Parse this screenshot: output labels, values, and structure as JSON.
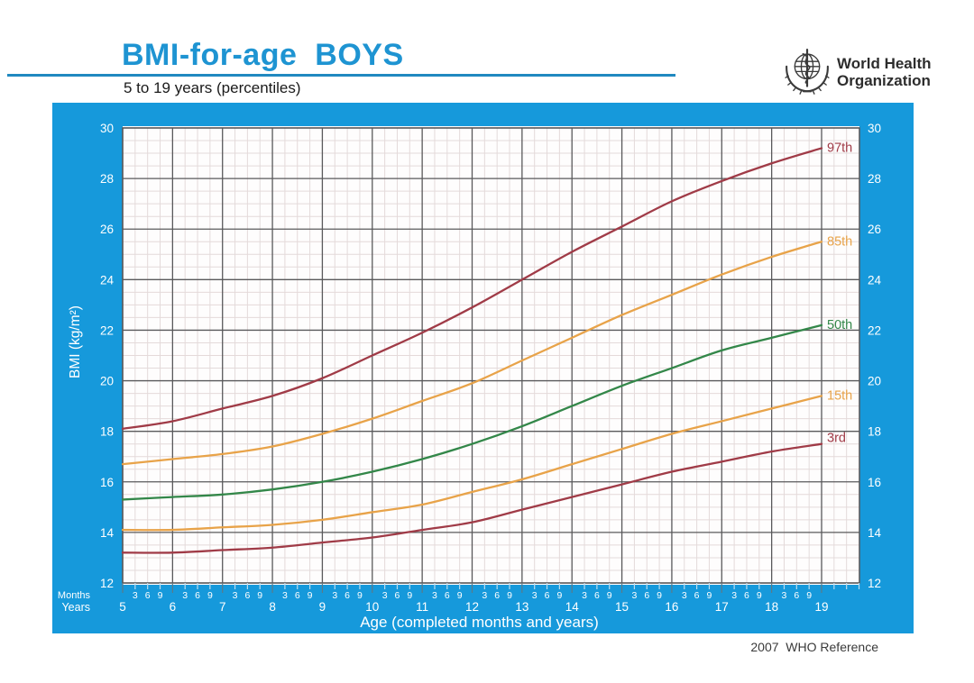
{
  "header": {
    "title": "BMI-for-age  BOYS",
    "subtitle": "5 to 19 years (percentiles)"
  },
  "logo": {
    "line1": "World Health",
    "line2": "Organization"
  },
  "footer": {
    "reference": "2007  WHO Reference"
  },
  "colors": {
    "panel_blue": "#1699db",
    "title_blue": "#1e94d2",
    "underline_blue": "#2089c0",
    "plot_bg": "#fefdfd",
    "grid_major": "#59595b",
    "grid_minor": "#e4dada",
    "axis_text": "#ffffff",
    "red": "#a03b47",
    "orange": "#e8a349",
    "green": "#338749"
  },
  "chart_data": {
    "type": "line",
    "title": "BMI-for-age BOYS, 5 to 19 years (percentiles)",
    "xlabel": "Age (completed months and years)",
    "ylabel": "BMI (kg/m²)",
    "x_axis_row_labels": {
      "months": "Months",
      "years": "Years"
    },
    "month_tick_labels": [
      "3",
      "6",
      "9"
    ],
    "x": [
      5,
      6,
      7,
      8,
      9,
      10,
      11,
      12,
      13,
      14,
      15,
      16,
      17,
      18,
      19
    ],
    "year_tick_labels": [
      "5",
      "6",
      "7",
      "8",
      "9",
      "10",
      "11",
      "12",
      "13",
      "14",
      "15",
      "16",
      "17",
      "18",
      "19"
    ],
    "y_tick_labels": [
      "30",
      "28",
      "26",
      "24",
      "22",
      "20",
      "18",
      "16",
      "14",
      "12"
    ],
    "xlim": [
      5,
      19.75
    ],
    "ylim": [
      12,
      30
    ],
    "y_major_step": 2,
    "y_minor_step": 0.5,
    "x_minor_step": 0.25,
    "grid": true,
    "legend_position": "right-of-curve-ends",
    "series": [
      {
        "name": "97th",
        "color": "#a03b47",
        "values": [
          18.1,
          18.4,
          18.9,
          19.4,
          20.1,
          21.0,
          21.9,
          22.9,
          24.0,
          25.1,
          26.1,
          27.1,
          27.9,
          28.6,
          29.2
        ]
      },
      {
        "name": "85th",
        "color": "#e8a349",
        "values": [
          16.7,
          16.9,
          17.1,
          17.4,
          17.9,
          18.5,
          19.2,
          19.9,
          20.8,
          21.7,
          22.6,
          23.4,
          24.2,
          24.9,
          25.5
        ]
      },
      {
        "name": "50th",
        "color": "#338749",
        "values": [
          15.3,
          15.4,
          15.5,
          15.7,
          16.0,
          16.4,
          16.9,
          17.5,
          18.2,
          19.0,
          19.8,
          20.5,
          21.2,
          21.7,
          22.2
        ]
      },
      {
        "name": "15th",
        "color": "#e8a349",
        "values": [
          14.1,
          14.1,
          14.2,
          14.3,
          14.5,
          14.8,
          15.1,
          15.6,
          16.1,
          16.7,
          17.3,
          17.9,
          18.4,
          18.9,
          19.4
        ]
      },
      {
        "name": "3rd",
        "color": "#a03b47",
        "values": [
          13.2,
          13.2,
          13.3,
          13.4,
          13.6,
          13.8,
          14.1,
          14.4,
          14.9,
          15.4,
          15.9,
          16.4,
          16.8,
          17.2,
          17.5
        ]
      }
    ]
  }
}
